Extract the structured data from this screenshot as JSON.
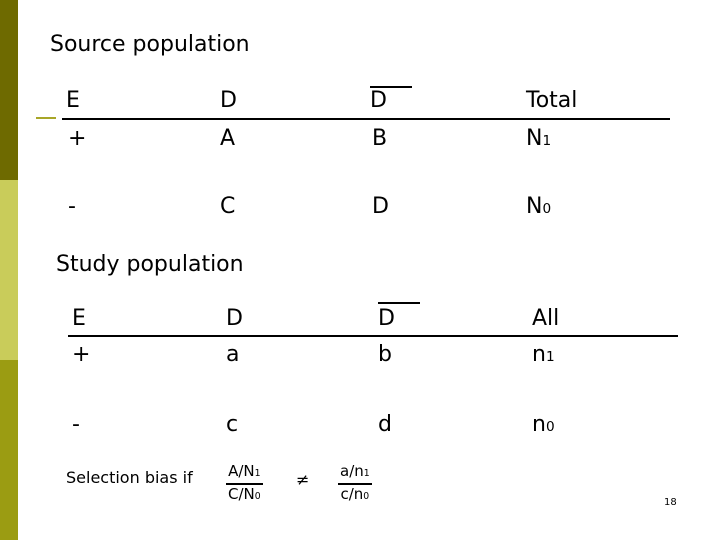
{
  "colors": {
    "bar_top": "#6e6a00",
    "bar_mid": "#c9cc5a",
    "bar_bottom": "#9b9c12",
    "accent": "#a8a628"
  },
  "source": {
    "title": "Source population",
    "header": [
      "E",
      "D",
      "D",
      "Total"
    ],
    "row_plus": {
      "e": "+",
      "d": "A",
      "notd": "B",
      "total": "N",
      "total_sub": "1"
    },
    "row_minus": {
      "e": "-",
      "d": "C",
      "notd": "D",
      "total": "N",
      "total_sub": "0"
    }
  },
  "study": {
    "title": "Study population",
    "header": [
      "E",
      "D",
      "D",
      "All"
    ],
    "row_plus": {
      "e": "+",
      "d": "a",
      "notd": "b",
      "total": "n",
      "total_sub": "1"
    },
    "row_minus": {
      "e": "-",
      "d": "c",
      "notd": "d",
      "total": "n",
      "total_sub": "0"
    }
  },
  "selection": {
    "label": "Selection bias if",
    "left_num": "A/N",
    "left_num_sub": "1",
    "left_den": "C/N",
    "left_den_sub": "0",
    "neq": "≠",
    "right_num": "a/n",
    "right_num_sub": "1",
    "right_den": "c/n",
    "right_den_sub": "0"
  },
  "page_number": "18"
}
